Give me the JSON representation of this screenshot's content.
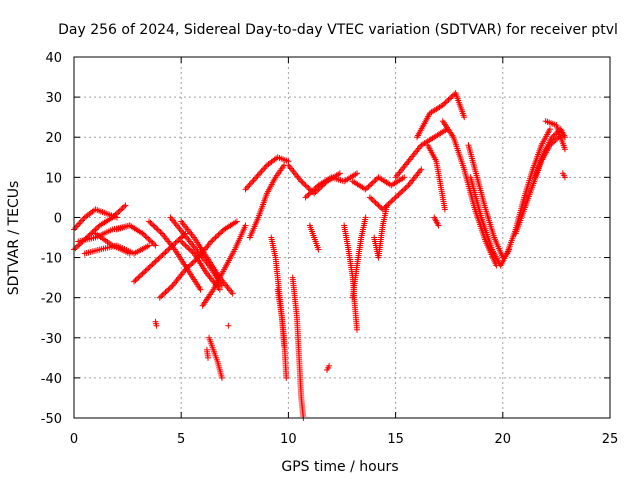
{
  "chart_data": {
    "type": "scatter",
    "title": "Day 256 of 2024, Sidereal Day-to-day VTEC variation (SDTVAR) for receiver ptvl",
    "xlabel": "GPS time / hours",
    "ylabel": "SDTVAR / TECUs",
    "xlim": [
      0,
      25
    ],
    "ylim": [
      -50,
      40
    ],
    "xticks": [
      0,
      5,
      10,
      15,
      20,
      25
    ],
    "yticks": [
      -50,
      -40,
      -30,
      -20,
      -10,
      0,
      10,
      20,
      30,
      40
    ],
    "xtick_labels": [
      "0",
      "5",
      "10",
      "15",
      "20",
      "25"
    ],
    "ytick_labels": [
      "-50",
      "-40",
      "-30",
      "-20",
      "-10",
      "0",
      "10",
      "20",
      "30",
      "40"
    ],
    "grid": true,
    "marker": "+",
    "color": "#ff0000",
    "tracks": [
      [
        [
          0.0,
          -8
        ],
        [
          0.6,
          -5
        ],
        [
          1.2,
          -2
        ],
        [
          1.8,
          0
        ],
        [
          2.4,
          3
        ]
      ],
      [
        [
          0.0,
          -3
        ],
        [
          0.5,
          0
        ],
        [
          1.0,
          2
        ],
        [
          1.5,
          1
        ],
        [
          2.0,
          0
        ]
      ],
      [
        [
          0.2,
          -6
        ],
        [
          1.0,
          -5
        ],
        [
          1.8,
          -3
        ],
        [
          2.6,
          -2
        ]
      ],
      [
        [
          0.5,
          -9
        ],
        [
          1.2,
          -8
        ],
        [
          2.0,
          -7
        ],
        [
          2.8,
          -9
        ],
        [
          3.5,
          -7
        ]
      ],
      [
        [
          1.0,
          -4
        ],
        [
          1.8,
          -7
        ],
        [
          2.6,
          -9
        ]
      ],
      [
        [
          2.0,
          -3
        ],
        [
          2.6,
          -2
        ],
        [
          3.2,
          -4
        ],
        [
          3.8,
          -7
        ]
      ],
      [
        [
          2.8,
          -16
        ],
        [
          3.4,
          -13
        ],
        [
          4.0,
          -10
        ],
        [
          4.6,
          -7
        ],
        [
          5.2,
          -4
        ]
      ],
      [
        [
          3.5,
          -1
        ],
        [
          4.1,
          -4
        ],
        [
          4.7,
          -8
        ],
        [
          5.3,
          -13
        ],
        [
          5.9,
          -18
        ]
      ],
      [
        [
          3.8,
          -26
        ],
        [
          3.85,
          -27
        ]
      ],
      [
        [
          4.0,
          -20
        ],
        [
          4.6,
          -17
        ],
        [
          5.2,
          -13
        ],
        [
          5.8,
          -10
        ],
        [
          6.4,
          -6
        ],
        [
          7.0,
          -3
        ],
        [
          7.6,
          -1
        ]
      ],
      [
        [
          4.5,
          0
        ],
        [
          5.1,
          -4
        ],
        [
          5.7,
          -8
        ],
        [
          6.3,
          -12
        ],
        [
          6.9,
          -17
        ]
      ],
      [
        [
          5.0,
          -1
        ],
        [
          5.6,
          -5
        ],
        [
          6.2,
          -10
        ],
        [
          6.8,
          -15
        ],
        [
          7.4,
          -19
        ]
      ],
      [
        [
          5.0,
          -6
        ],
        [
          5.6,
          -9
        ],
        [
          6.2,
          -14
        ],
        [
          6.8,
          -18
        ]
      ],
      [
        [
          6.0,
          -22
        ],
        [
          6.5,
          -18
        ],
        [
          7.0,
          -13
        ],
        [
          7.5,
          -8
        ],
        [
          8.0,
          -2
        ]
      ],
      [
        [
          6.3,
          -30
        ],
        [
          6.5,
          -33
        ],
        [
          6.7,
          -36
        ],
        [
          6.9,
          -40
        ]
      ],
      [
        [
          6.2,
          -33
        ],
        [
          6.25,
          -35
        ]
      ],
      [
        [
          7.2,
          -27
        ]
      ],
      [
        [
          8.0,
          7
        ],
        [
          8.5,
          10
        ],
        [
          9.0,
          13
        ],
        [
          9.5,
          15
        ],
        [
          10.0,
          14
        ]
      ],
      [
        [
          8.2,
          -5
        ],
        [
          8.6,
          0
        ],
        [
          9.0,
          6
        ],
        [
          9.4,
          10
        ],
        [
          9.8,
          13
        ]
      ],
      [
        [
          9.2,
          -5
        ],
        [
          9.4,
          -10
        ],
        [
          9.6,
          -20
        ],
        [
          9.8,
          -30
        ],
        [
          9.9,
          -40
        ]
      ],
      [
        [
          9.5,
          -18
        ],
        [
          9.7,
          -25
        ],
        [
          9.8,
          -32
        ]
      ],
      [
        [
          10.2,
          -15
        ],
        [
          10.4,
          -25
        ],
        [
          10.5,
          -35
        ],
        [
          10.6,
          -45
        ],
        [
          10.7,
          -50
        ]
      ],
      [
        [
          10.0,
          13
        ],
        [
          10.6,
          9
        ],
        [
          11.2,
          6
        ],
        [
          11.8,
          9
        ],
        [
          12.4,
          11
        ]
      ],
      [
        [
          10.8,
          5
        ],
        [
          11.4,
          8
        ],
        [
          12.0,
          10
        ],
        [
          12.6,
          9
        ],
        [
          13.2,
          11
        ]
      ],
      [
        [
          11.0,
          -2
        ],
        [
          11.2,
          -5
        ],
        [
          11.4,
          -8
        ]
      ],
      [
        [
          11.8,
          -38
        ],
        [
          11.9,
          -37
        ]
      ],
      [
        [
          12.6,
          -2
        ],
        [
          12.8,
          -8
        ],
        [
          13.0,
          -15
        ],
        [
          13.1,
          -22
        ],
        [
          13.2,
          -28
        ]
      ],
      [
        [
          13.0,
          -20
        ],
        [
          13.2,
          -12
        ],
        [
          13.4,
          -5
        ],
        [
          13.6,
          0
        ]
      ],
      [
        [
          13.0,
          9
        ],
        [
          13.6,
          7
        ],
        [
          14.2,
          10
        ],
        [
          14.8,
          8
        ],
        [
          15.4,
          10
        ]
      ],
      [
        [
          13.8,
          5
        ],
        [
          14.4,
          2
        ],
        [
          15.0,
          5
        ],
        [
          15.6,
          8
        ],
        [
          16.2,
          12
        ]
      ],
      [
        [
          14.0,
          -5
        ],
        [
          14.2,
          -10
        ],
        [
          14.4,
          -2
        ],
        [
          14.6,
          3
        ]
      ],
      [
        [
          15.0,
          10
        ],
        [
          15.6,
          14
        ],
        [
          16.2,
          18
        ],
        [
          16.8,
          20
        ],
        [
          17.4,
          22
        ]
      ],
      [
        [
          16.0,
          20
        ],
        [
          16.6,
          26
        ],
        [
          17.2,
          28
        ],
        [
          17.8,
          31
        ],
        [
          18.2,
          25
        ]
      ],
      [
        [
          16.5,
          18
        ],
        [
          16.9,
          14
        ],
        [
          17.1,
          8
        ],
        [
          17.3,
          2
        ]
      ],
      [
        [
          16.8,
          0
        ],
        [
          17.0,
          -2
        ]
      ],
      [
        [
          17.2,
          24
        ],
        [
          17.7,
          20
        ],
        [
          18.2,
          12
        ],
        [
          18.7,
          2
        ],
        [
          19.2,
          -6
        ],
        [
          19.7,
          -12
        ]
      ],
      [
        [
          18.5,
          10
        ],
        [
          19.0,
          0
        ],
        [
          19.5,
          -8
        ],
        [
          19.9,
          -12
        ],
        [
          20.3,
          -8
        ]
      ],
      [
        [
          18.4,
          18
        ],
        [
          18.8,
          10
        ],
        [
          19.2,
          2
        ],
        [
          19.6,
          -5
        ],
        [
          20.0,
          -10
        ]
      ],
      [
        [
          20.2,
          -9
        ],
        [
          20.6,
          -3
        ],
        [
          21.0,
          5
        ],
        [
          21.4,
          12
        ],
        [
          21.8,
          18
        ],
        [
          22.2,
          22
        ]
      ],
      [
        [
          20.6,
          -4
        ],
        [
          21.0,
          2
        ],
        [
          21.4,
          8
        ],
        [
          21.8,
          14
        ],
        [
          22.2,
          18
        ],
        [
          22.6,
          20
        ]
      ],
      [
        [
          21.5,
          10
        ],
        [
          21.9,
          16
        ],
        [
          22.3,
          20
        ],
        [
          22.7,
          22
        ],
        [
          22.9,
          20
        ]
      ],
      [
        [
          22.0,
          24
        ],
        [
          22.5,
          23
        ],
        [
          22.9,
          17
        ]
      ],
      [
        [
          22.8,
          11
        ],
        [
          22.9,
          10
        ]
      ]
    ]
  }
}
